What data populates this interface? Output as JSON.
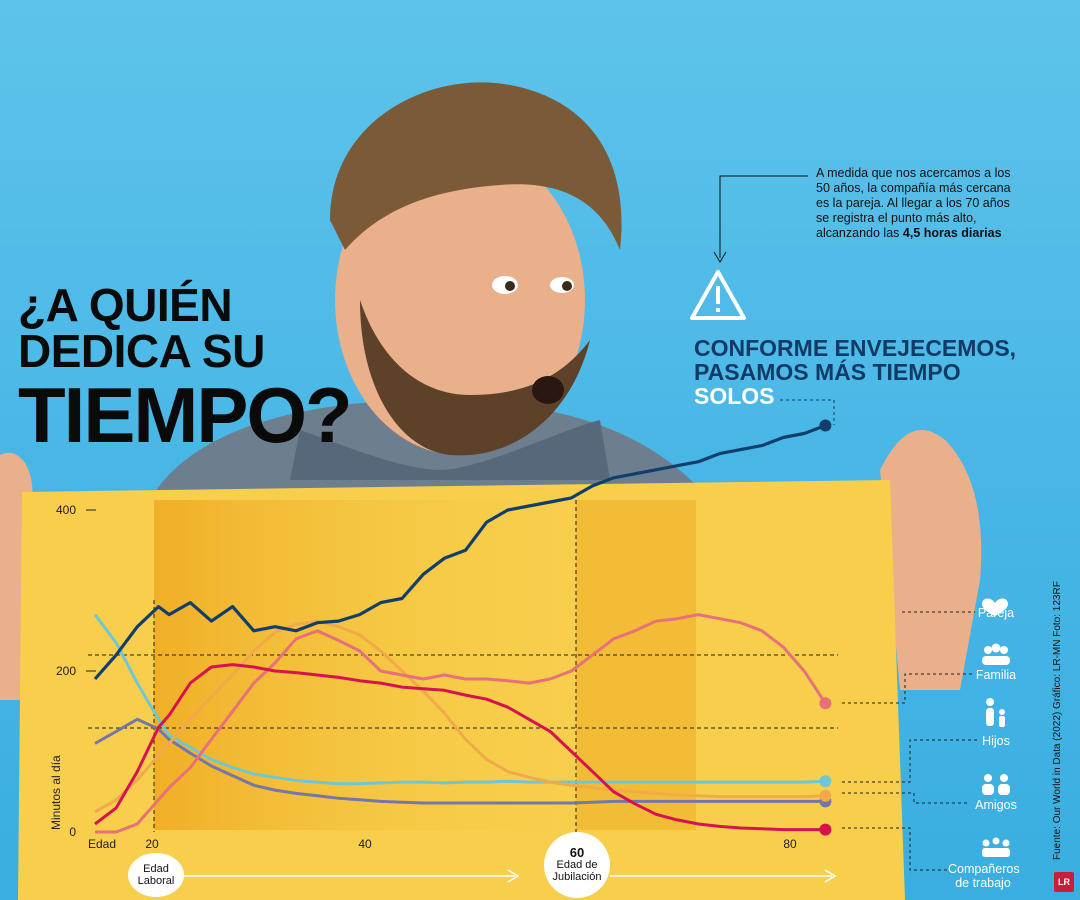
{
  "title": {
    "line1": "¿A QUIÉN",
    "line2": "DEDICA SU",
    "line3": "TIEMPO?"
  },
  "callout": {
    "text": "A medida que nos acercamos a los 50 años, la compañía más cercana es la pareja. Al llegar a los 70 años se registra el punto más alto, alcanzando las",
    "bold": "4,5 horas diarias"
  },
  "headline": {
    "line1": "CONFORME ENVEJECEMOS,",
    "line2": "PASAMOS MÁS TIEMPO",
    "highlight": "SOLOS"
  },
  "source": "Fuente: Our World in Data (2022)   Gráfico: LR-MN   Foto: 123RF",
  "logo": "LR",
  "age_markers": {
    "laboral": {
      "line1": "Edad",
      "line2": "Laboral"
    },
    "jubilacion": {
      "age": "60",
      "line1": "Edad de",
      "line2": "Jubilación"
    }
  },
  "colors": {
    "solos": "#123e6b",
    "pareja": "#e8707a",
    "familia": "#f2a94a",
    "hijos": "#6fc7d6",
    "amigos": "#7378a8",
    "companeros": "#d6134f",
    "board": "#f7cf4c",
    "highlight": "#f1b32c",
    "background": "#4bb8e7"
  },
  "chart_data": {
    "type": "line",
    "xlabel": "Edad",
    "ylabel": "Minutos al día",
    "xlim": [
      15,
      85
    ],
    "ylim": [
      0,
      400
    ],
    "x_ticks": [
      "20",
      "40",
      "80"
    ],
    "y_ticks": [
      "0",
      "200",
      "400"
    ],
    "grid": false,
    "series": [
      {
        "name": "Solos",
        "key": "solos",
        "x": [
          15,
          17,
          19,
          21,
          22,
          24,
          26,
          28,
          30,
          32,
          34,
          36,
          38,
          40,
          42,
          44,
          46,
          48,
          50,
          52,
          54,
          56,
          58,
          60,
          62,
          64,
          66,
          68,
          70,
          72,
          74,
          76,
          78,
          80,
          82,
          84
        ],
        "y": [
          190,
          220,
          255,
          280,
          270,
          285,
          262,
          280,
          250,
          255,
          250,
          260,
          262,
          270,
          285,
          290,
          320,
          340,
          350,
          385,
          400,
          405,
          410,
          415,
          430,
          440,
          445,
          450,
          455,
          460,
          470,
          475,
          480,
          490,
          495,
          505
        ]
      },
      {
        "name": "Pareja",
        "key": "pareja",
        "x": [
          15,
          17,
          19,
          21,
          22,
          24,
          26,
          28,
          30,
          32,
          34,
          36,
          38,
          40,
          42,
          44,
          46,
          48,
          50,
          52,
          54,
          56,
          58,
          60,
          62,
          64,
          66,
          68,
          70,
          72,
          74,
          76,
          78,
          80,
          82,
          84
        ],
        "y": [
          0,
          0,
          10,
          40,
          55,
          80,
          115,
          150,
          185,
          210,
          240,
          250,
          238,
          225,
          200,
          195,
          190,
          195,
          190,
          190,
          188,
          185,
          190,
          200,
          220,
          240,
          250,
          262,
          265,
          270,
          265,
          260,
          250,
          230,
          200,
          160
        ]
      },
      {
        "name": "Familia",
        "key": "familia",
        "x": [
          15,
          17,
          19,
          21,
          22,
          24,
          26,
          28,
          30,
          32,
          34,
          36,
          38,
          40,
          42,
          44,
          46,
          48,
          50,
          52,
          54,
          56,
          58,
          60,
          62,
          64,
          66,
          68,
          70,
          72,
          74,
          76,
          78,
          80,
          82,
          84
        ],
        "y": [
          25,
          40,
          65,
          95,
          110,
          140,
          168,
          195,
          225,
          248,
          258,
          262,
          255,
          245,
          225,
          200,
          175,
          148,
          115,
          90,
          75,
          68,
          62,
          58,
          55,
          52,
          50,
          48,
          46,
          45,
          44,
          44,
          44,
          44,
          44,
          45
        ]
      },
      {
        "name": "Hijos",
        "key": "hijos",
        "x": [
          15,
          17,
          19,
          21,
          22,
          24,
          26,
          28,
          30,
          32,
          34,
          36,
          38,
          40,
          42,
          44,
          46,
          48,
          50,
          52,
          54,
          56,
          58,
          60,
          62,
          64,
          66,
          68,
          70,
          72,
          74,
          76,
          78,
          80,
          82,
          84
        ],
        "y": [
          270,
          235,
          185,
          140,
          120,
          105,
          90,
          80,
          72,
          68,
          64,
          62,
          60,
          60,
          61,
          62,
          62,
          61,
          62,
          62,
          63,
          62,
          62,
          62,
          62,
          62,
          62,
          62,
          62,
          62,
          62,
          62,
          62,
          62,
          62,
          63
        ]
      },
      {
        "name": "Amigos",
        "key": "amigos",
        "x": [
          15,
          17,
          19,
          21,
          22,
          24,
          26,
          28,
          30,
          32,
          34,
          36,
          38,
          40,
          42,
          44,
          46,
          48,
          50,
          52,
          54,
          56,
          58,
          60,
          62,
          64,
          66,
          68,
          70,
          72,
          74,
          76,
          78,
          80,
          82,
          84
        ],
        "y": [
          110,
          125,
          140,
          128,
          115,
          98,
          82,
          70,
          58,
          52,
          48,
          45,
          42,
          40,
          38,
          37,
          36,
          36,
          36,
          36,
          36,
          36,
          36,
          36,
          37,
          38,
          38,
          38,
          38,
          38,
          38,
          38,
          38,
          38,
          38,
          38
        ]
      },
      {
        "name": "Compañeros de trabajo",
        "key": "companeros",
        "x": [
          15,
          17,
          19,
          21,
          22,
          24,
          26,
          28,
          30,
          32,
          34,
          36,
          38,
          40,
          42,
          44,
          46,
          48,
          50,
          52,
          54,
          56,
          58,
          60,
          62,
          64,
          66,
          68,
          70,
          72,
          74,
          76,
          78,
          80,
          82,
          84
        ],
        "y": [
          10,
          30,
          75,
          130,
          145,
          185,
          205,
          208,
          205,
          200,
          198,
          195,
          192,
          188,
          185,
          180,
          178,
          176,
          170,
          165,
          155,
          140,
          125,
          100,
          75,
          50,
          35,
          22,
          15,
          10,
          7,
          5,
          4,
          3,
          3,
          3
        ]
      }
    ]
  }
}
